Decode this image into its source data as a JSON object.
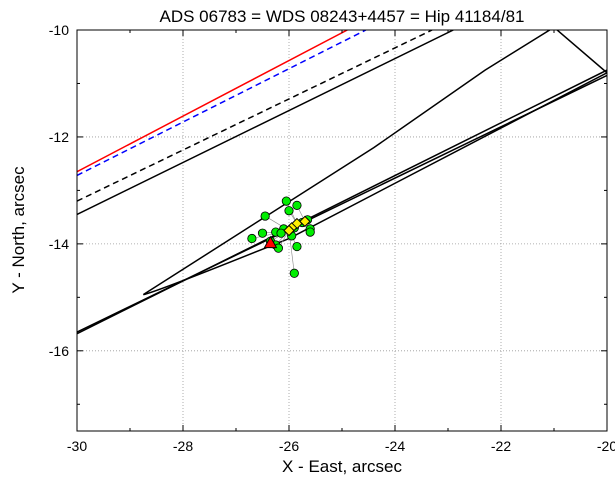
{
  "chart_data": {
    "type": "scatter",
    "title": "ADS 06783 = WDS 08243+4457 = Hip 41184/81",
    "xlabel": "X - East, arcsec",
    "ylabel": "Y - North, arcsec",
    "xlim": [
      -30,
      -20
    ],
    "ylim": [
      -17.5,
      -10
    ],
    "x_ticks": [
      -30,
      -28,
      -26,
      -24,
      -22,
      -20
    ],
    "x_tick_labels": [
      "-30",
      "-28",
      "-26",
      "-24",
      "-22",
      "-20"
    ],
    "y_ticks": [
      -16,
      -14,
      -12,
      -10
    ],
    "y_tick_labels": [
      "-16",
      "-14",
      "-12",
      "-10"
    ],
    "grid": true,
    "colors": {
      "red": "#ff0000",
      "blue": "#0000ff",
      "black": "#000000",
      "green": "#00ee00",
      "yellow": "#ffee00",
      "grid": "#999999"
    },
    "lines": [
      {
        "style": "solid",
        "color": "#ff0000",
        "points": [
          [
            -30,
            -12.65
          ],
          [
            -24.9,
            -10.0
          ]
        ]
      },
      {
        "style": "dashed",
        "color": "#0000ff",
        "points": [
          [
            -30,
            -12.72
          ],
          [
            -24.55,
            -10.0
          ]
        ]
      },
      {
        "style": "dashed",
        "color": "#000000",
        "points": [
          [
            -30,
            -13.2
          ],
          [
            -23.3,
            -10.0
          ]
        ]
      },
      {
        "style": "solid",
        "color": "#000000",
        "points": [
          [
            -30,
            -13.45
          ],
          [
            -22.9,
            -10.0
          ]
        ]
      },
      {
        "style": "solid",
        "color": "#000000",
        "points": [
          [
            -30,
            -15.65
          ],
          [
            -20,
            -10.85
          ]
        ]
      },
      {
        "style": "solid",
        "color": "#000000",
        "points": [
          [
            -30,
            -15.68
          ],
          [
            -20,
            -10.75
          ]
        ]
      }
    ],
    "orbit": [
      [
        -28.75,
        -14.95
      ],
      [
        -26.6,
        -13.6
      ],
      [
        -24.4,
        -12.2
      ],
      [
        -22.3,
        -10.75
      ],
      [
        -21.0,
        -9.95
      ],
      [
        -20,
        -10.8
      ],
      [
        -26.0,
        -13.9
      ],
      [
        -28.5,
        -14.9
      ]
    ],
    "observations": [
      {
        "x": -26.05,
        "y": -13.2
      },
      {
        "x": -25.85,
        "y": -13.28
      },
      {
        "x": -26.0,
        "y": -13.38
      },
      {
        "x": -26.45,
        "y": -13.48
      },
      {
        "x": -25.65,
        "y": -13.55
      },
      {
        "x": -25.75,
        "y": -13.6
      },
      {
        "x": -25.9,
        "y": -13.7
      },
      {
        "x": -26.1,
        "y": -13.72
      },
      {
        "x": -26.25,
        "y": -13.78
      },
      {
        "x": -25.6,
        "y": -13.72
      },
      {
        "x": -25.6,
        "y": -13.78
      },
      {
        "x": -26.5,
        "y": -13.8
      },
      {
        "x": -26.15,
        "y": -13.8
      },
      {
        "x": -25.95,
        "y": -13.85
      },
      {
        "x": -26.7,
        "y": -13.9
      },
      {
        "x": -26.35,
        "y": -13.95
      },
      {
        "x": -26.25,
        "y": -14.02
      },
      {
        "x": -25.85,
        "y": -14.05
      },
      {
        "x": -26.2,
        "y": -14.08
      },
      {
        "x": -25.9,
        "y": -14.55
      }
    ],
    "predicted": [
      {
        "x": -25.85,
        "y": -13.62
      },
      {
        "x": -25.95,
        "y": -13.7
      },
      {
        "x": -25.7,
        "y": -13.58
      },
      {
        "x": -26.0,
        "y": -13.75
      }
    ],
    "primary_marker": {
      "x": -26.35,
      "y": -13.98
    }
  }
}
